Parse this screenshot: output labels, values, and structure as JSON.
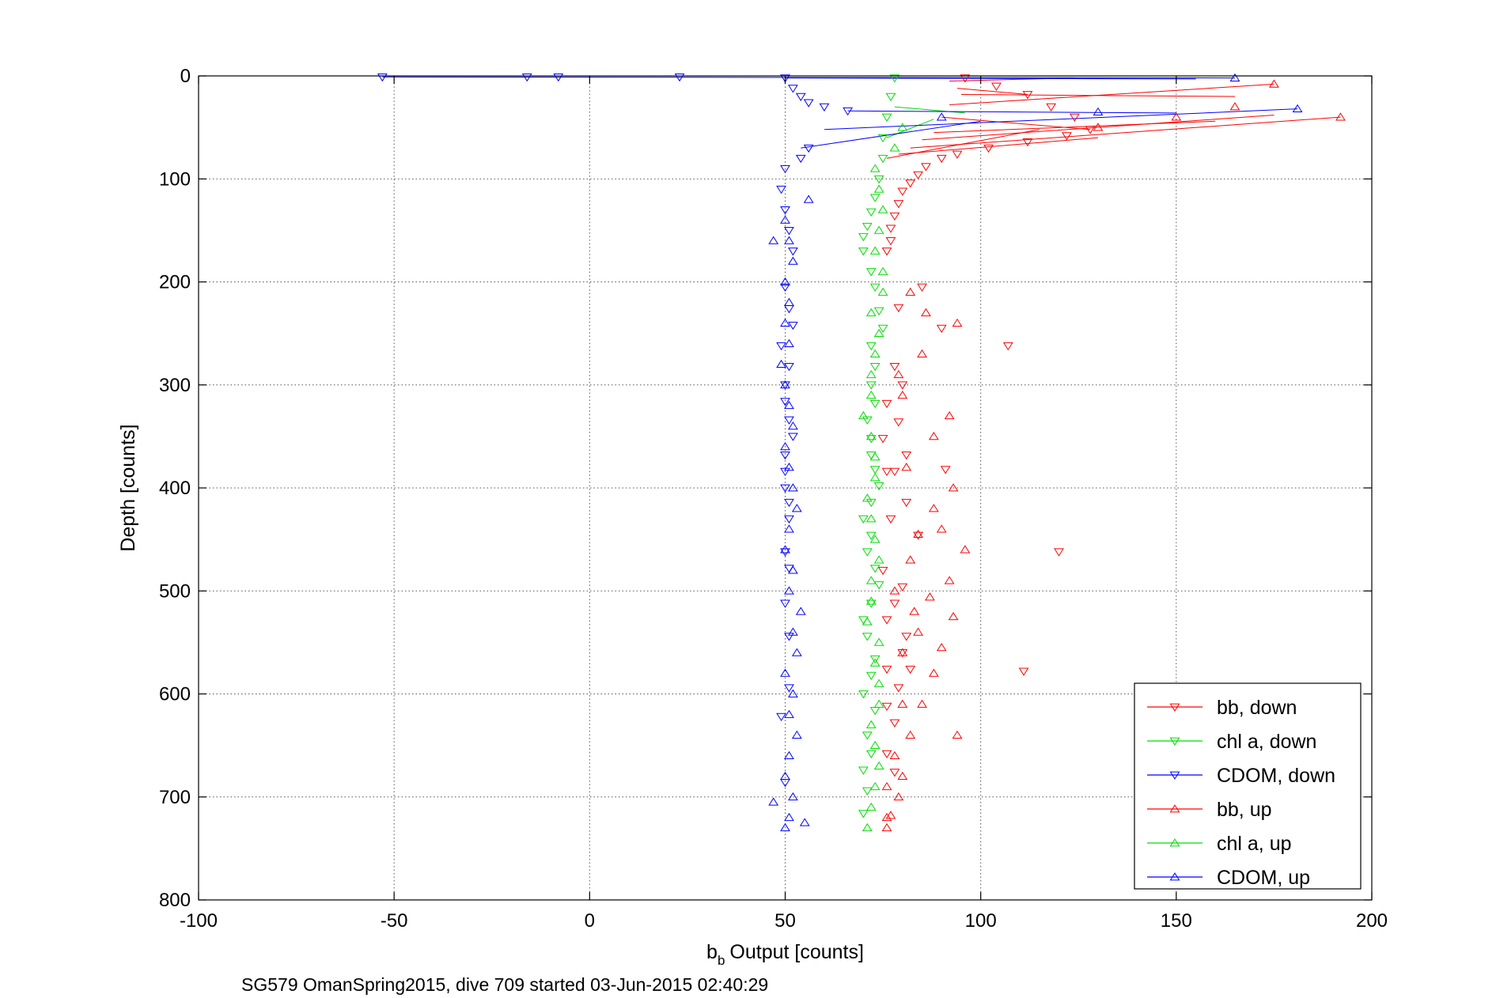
{
  "chart_data": {
    "type": "scatter",
    "title": "",
    "xlabel": "Output [counts]",
    "xlabel_prefix": "b",
    "xlabel_sub": "b",
    "ylabel": "Depth [counts]",
    "caption": "SG579 OmanSpring2015, dive 709 started 03-Jun-2015 02:40:29",
    "xlim": [
      -100,
      200
    ],
    "ylim": [
      0,
      800
    ],
    "y_reversed": true,
    "xticks": [
      -100,
      -50,
      0,
      50,
      100,
      150,
      200
    ],
    "yticks": [
      0,
      100,
      200,
      300,
      400,
      500,
      600,
      700,
      800
    ],
    "grid": true,
    "legend_position": "bottom-right",
    "series": [
      {
        "name": "bb, down",
        "color": "#ff0000",
        "marker": "triangle-down",
        "x": [
          96,
          104,
          112,
          118,
          124,
          128,
          122,
          112,
          102,
          94,
          90,
          86,
          84,
          82,
          80,
          79,
          78,
          77,
          77,
          76,
          85,
          79,
          90,
          107,
          78,
          80,
          76,
          79,
          75,
          81,
          78,
          76,
          91,
          81,
          77,
          84,
          120,
          75,
          80,
          78,
          76,
          81,
          80,
          76,
          82,
          111,
          79,
          76,
          78,
          76,
          78
        ],
        "y": [
          2,
          10,
          18,
          30,
          40,
          52,
          58,
          64,
          70,
          76,
          80,
          88,
          96,
          104,
          112,
          124,
          136,
          148,
          160,
          170,
          205,
          225,
          245,
          262,
          282,
          300,
          318,
          336,
          352,
          368,
          384,
          384,
          382,
          414,
          430,
          446,
          462,
          480,
          496,
          512,
          528,
          544,
          560,
          576,
          576,
          578,
          594,
          612,
          628,
          658,
          676
        ]
      },
      {
        "name": "chl a, down",
        "color": "#00dd00",
        "marker": "triangle-down",
        "x": [
          78,
          77,
          76,
          75,
          75,
          74,
          73,
          72,
          71,
          70,
          70,
          72,
          73,
          74,
          75,
          72,
          73,
          72,
          73,
          71,
          72,
          72,
          73,
          74,
          72,
          70,
          72,
          71,
          73,
          74,
          72,
          70,
          71,
          73,
          72,
          70,
          73,
          71,
          72,
          70,
          71,
          70
        ],
        "y": [
          2,
          20,
          40,
          60,
          80,
          100,
          118,
          132,
          146,
          156,
          170,
          190,
          205,
          228,
          245,
          262,
          282,
          300,
          318,
          334,
          352,
          368,
          382,
          398,
          414,
          430,
          446,
          462,
          478,
          494,
          512,
          528,
          544,
          566,
          582,
          600,
          616,
          640,
          658,
          674,
          694,
          716
        ]
      },
      {
        "name": "CDOM, down",
        "color": "#0000ff",
        "marker": "triangle-down",
        "x": [
          -53,
          -16,
          -8,
          23,
          50,
          52,
          54,
          56,
          60,
          66,
          56,
          54,
          50,
          49,
          50,
          51,
          52,
          50,
          51,
          52,
          49,
          51,
          50,
          50,
          51,
          52,
          50,
          50,
          50,
          51,
          51,
          50,
          51,
          50,
          51,
          51,
          49,
          50
        ],
        "y": [
          1,
          1,
          1,
          1,
          2,
          12,
          20,
          26,
          30,
          34,
          70,
          80,
          90,
          110,
          130,
          150,
          170,
          205,
          226,
          242,
          262,
          282,
          300,
          316,
          334,
          350,
          368,
          384,
          400,
          414,
          430,
          462,
          478,
          512,
          544,
          594,
          622,
          686
        ]
      },
      {
        "name": "bb, up",
        "color": "#ff0000",
        "marker": "triangle-up",
        "x": [
          76,
          77,
          79,
          80,
          82,
          85,
          88,
          80,
          84,
          83,
          78,
          82,
          96,
          90,
          88,
          93,
          81,
          88,
          92,
          80,
          79,
          85,
          94,
          86,
          82,
          92,
          93,
          84,
          90,
          87,
          80,
          94,
          76,
          76,
          78,
          192,
          175,
          165,
          150,
          130
        ],
        "y": [
          730,
          718,
          700,
          680,
          640,
          610,
          580,
          560,
          540,
          520,
          500,
          470,
          460,
          440,
          420,
          400,
          380,
          350,
          330,
          310,
          290,
          270,
          240,
          230,
          210,
          490,
          525,
          445,
          555,
          506,
          610,
          640,
          720,
          690,
          660,
          40,
          8,
          30,
          40,
          50
        ]
      },
      {
        "name": "chl a, up",
        "color": "#00dd00",
        "marker": "triangle-up",
        "x": [
          71,
          72,
          73,
          74,
          73,
          72,
          74,
          74,
          73,
          74,
          71,
          72,
          72,
          74,
          73,
          72,
          71,
          73,
          73,
          72,
          70,
          72,
          72,
          73,
          74,
          72,
          75,
          75,
          73,
          74,
          75,
          74,
          73,
          78,
          80
        ],
        "y": [
          730,
          710,
          690,
          670,
          650,
          630,
          610,
          590,
          570,
          550,
          530,
          510,
          490,
          470,
          450,
          430,
          410,
          390,
          370,
          350,
          330,
          310,
          290,
          270,
          250,
          230,
          210,
          190,
          170,
          150,
          130,
          110,
          90,
          70,
          50
        ]
      },
      {
        "name": "CDOM, up",
        "color": "#0000ff",
        "marker": "triangle-up",
        "x": [
          50,
          51,
          52,
          47,
          55,
          50,
          51,
          53,
          51,
          52,
          50,
          53,
          52,
          54,
          51,
          52,
          50,
          51,
          53,
          52,
          51,
          50,
          52,
          51,
          50,
          49,
          51,
          50,
          51,
          50,
          52,
          51,
          47,
          50,
          56,
          181,
          165,
          130,
          90
        ],
        "y": [
          730,
          720,
          700,
          705,
          725,
          680,
          660,
          640,
          620,
          600,
          580,
          560,
          540,
          520,
          500,
          480,
          460,
          440,
          420,
          400,
          380,
          360,
          340,
          320,
          300,
          280,
          260,
          240,
          220,
          200,
          180,
          160,
          160,
          140,
          120,
          32,
          2,
          35,
          40
        ]
      }
    ],
    "trails": [
      {
        "series": 3,
        "from": [
          76,
          80
        ],
        "to": [
          115,
          52
        ]
      },
      {
        "series": 3,
        "from": [
          79,
          76
        ],
        "to": [
          130,
          60
        ]
      },
      {
        "series": 3,
        "from": [
          82,
          70
        ],
        "to": [
          192,
          40
        ]
      },
      {
        "series": 3,
        "from": [
          85,
          62
        ],
        "to": [
          175,
          38
        ]
      },
      {
        "series": 3,
        "from": [
          88,
          55
        ],
        "to": [
          160,
          44
        ]
      },
      {
        "series": 3,
        "from": [
          92,
          28
        ],
        "to": [
          175,
          8
        ]
      },
      {
        "series": 3,
        "from": [
          95,
          18
        ],
        "to": [
          165,
          20
        ]
      },
      {
        "series": 3,
        "from": [
          92,
          5
        ],
        "to": [
          124,
          2
        ]
      },
      {
        "series": 0,
        "from": [
          90,
          40
        ],
        "to": [
          128,
          52
        ]
      },
      {
        "series": 0,
        "from": [
          94,
          12
        ],
        "to": [
          112,
          18
        ]
      },
      {
        "series": 4,
        "from": [
          76,
          60
        ],
        "to": [
          88,
          42
        ]
      },
      {
        "series": 4,
        "from": [
          78,
          30
        ],
        "to": [
          96,
          36
        ]
      },
      {
        "series": 5,
        "from": [
          -53,
          1
        ],
        "to": [
          165,
          2
        ]
      },
      {
        "series": 5,
        "from": [
          60,
          52
        ],
        "to": [
          181,
          32
        ]
      },
      {
        "series": 5,
        "from": [
          66,
          34
        ],
        "to": [
          150,
          36
        ]
      },
      {
        "series": 2,
        "from": [
          50,
          2
        ],
        "to": [
          155,
          3
        ]
      },
      {
        "series": 5,
        "from": [
          54,
          70
        ],
        "to": [
          100,
          44
        ]
      }
    ]
  }
}
